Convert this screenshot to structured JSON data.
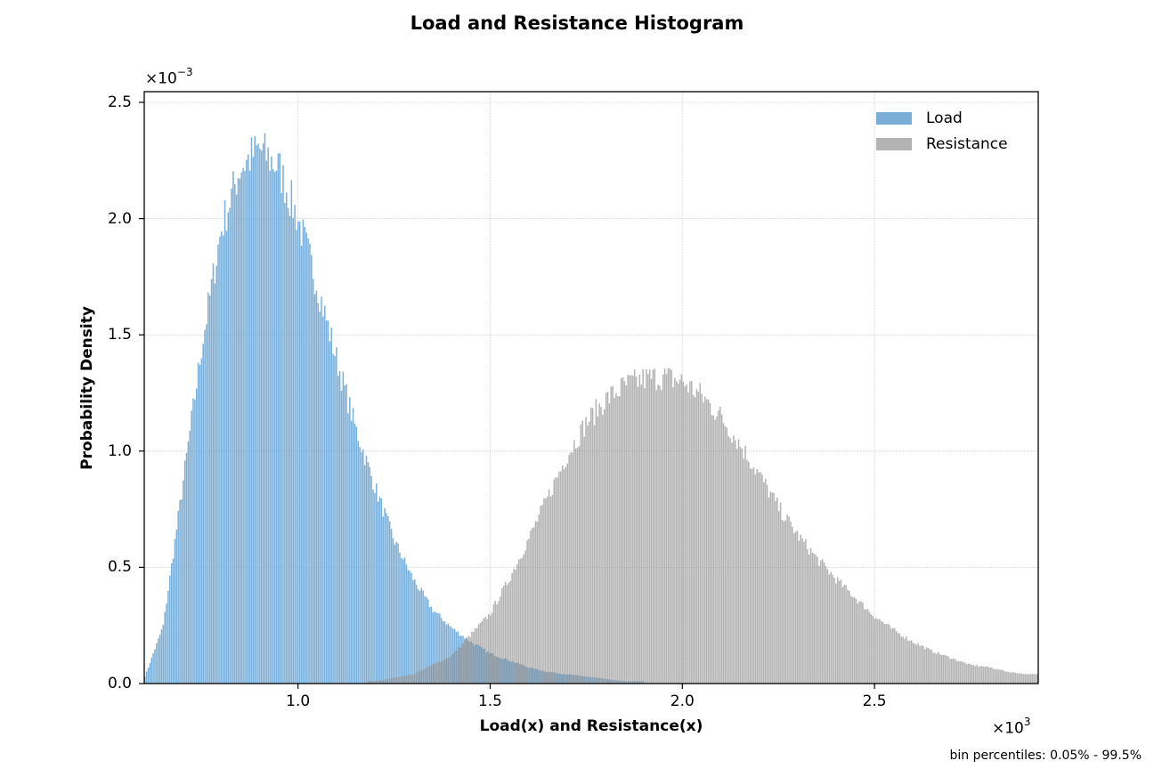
{
  "chart_data": {
    "type": "bar",
    "title": "Load and Resistance Histogram",
    "xlabel": "Load(x) and Resistance(x)",
    "ylabel": "Probability Density",
    "x_offset_label": "×10^3",
    "y_offset_label": "×10^-3",
    "xlim": [
      0.6,
      2.926
    ],
    "ylim": [
      0,
      2.546
    ],
    "x_ticks": [
      1.0,
      1.5,
      2.0,
      2.5
    ],
    "x_tick_labels": [
      "1.0",
      "1.5",
      "2.0",
      "2.5"
    ],
    "y_ticks": [
      0.0,
      0.5,
      1.0,
      1.5,
      2.0,
      2.5
    ],
    "y_tick_labels": [
      "0.0",
      "0.5",
      "1.0",
      "1.5",
      "2.0",
      "2.5"
    ],
    "grid": true,
    "legend_position": "upper right",
    "footnote": "bin percentiles: 0.05% - 99.5%",
    "series": [
      {
        "name": "Load",
        "color": "#6fa8d6",
        "distribution": "lognormal-like, right-skewed",
        "approx_mode_x": 0.92,
        "approx_peak_density": 2.3,
        "approx_x_range": [
          0.6,
          1.9
        ],
        "x": [
          0.6,
          0.65,
          0.7,
          0.75,
          0.8,
          0.85,
          0.9,
          0.95,
          1.0,
          1.05,
          1.1,
          1.15,
          1.2,
          1.25,
          1.3,
          1.35,
          1.4,
          1.45,
          1.5,
          1.55,
          1.6,
          1.65,
          1.7,
          1.75,
          1.8,
          1.85
        ],
        "values": [
          0.02,
          0.25,
          0.85,
          1.45,
          1.95,
          2.22,
          2.3,
          2.22,
          2.0,
          1.72,
          1.4,
          1.1,
          0.85,
          0.62,
          0.45,
          0.32,
          0.24,
          0.18,
          0.13,
          0.1,
          0.07,
          0.05,
          0.04,
          0.03,
          0.02,
          0.01
        ]
      },
      {
        "name": "Resistance",
        "color": "#a9a9a9",
        "distribution": "approximately normal, slight right skew",
        "approx_mode_x": 1.95,
        "approx_peak_density": 1.32,
        "approx_x_range": [
          1.2,
          2.93
        ],
        "x": [
          1.2,
          1.3,
          1.4,
          1.5,
          1.55,
          1.6,
          1.65,
          1.7,
          1.75,
          1.8,
          1.85,
          1.9,
          1.95,
          2.0,
          2.05,
          2.1,
          2.15,
          2.2,
          2.25,
          2.3,
          2.35,
          2.4,
          2.45,
          2.5,
          2.55,
          2.6,
          2.65,
          2.7,
          2.75,
          2.8,
          2.85,
          2.9
        ],
        "values": [
          0.01,
          0.04,
          0.12,
          0.3,
          0.45,
          0.62,
          0.8,
          0.98,
          1.12,
          1.22,
          1.28,
          1.31,
          1.32,
          1.3,
          1.24,
          1.15,
          1.03,
          0.9,
          0.76,
          0.64,
          0.54,
          0.45,
          0.37,
          0.29,
          0.23,
          0.18,
          0.14,
          0.11,
          0.08,
          0.07,
          0.05,
          0.04
        ]
      }
    ]
  },
  "legend": {
    "items": [
      {
        "label": "Load",
        "color": "#7aaed6"
      },
      {
        "label": "Resistance",
        "color": "#b3b3b3"
      }
    ]
  }
}
